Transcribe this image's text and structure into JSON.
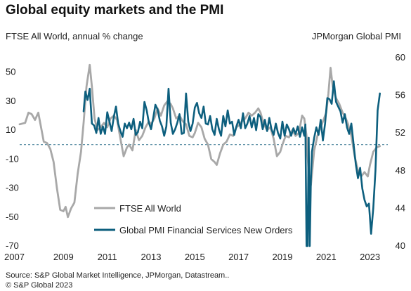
{
  "title": "Global equity markets and the PMI",
  "footer": {
    "source": "Source: S&P Global Market Intelligence, JPMorgan, Datastream..",
    "copyright": "© S&P Global 2023"
  },
  "colors": {
    "ftse": "#a8a8a8",
    "pmi": "#0d5f7e",
    "reference": "#2c6f8a",
    "text": "#222222"
  },
  "chart_data": {
    "type": "line",
    "ylabel": "FTSE All World, annual % change",
    "y2label": "JPMorgan Global PMI",
    "xlim": [
      2007,
      2023.75
    ],
    "ylim": [
      -70,
      60
    ],
    "y2lim": [
      40,
      60
    ],
    "x_ticks": [
      "2007",
      "2009",
      "2011",
      "2013",
      "2015",
      "2017",
      "2019",
      "2021",
      "2023"
    ],
    "y_ticks": [
      "50",
      "30",
      "10",
      "-10",
      "-30",
      "-50",
      "-70"
    ],
    "y2_ticks": [
      "60",
      "56",
      "52",
      "48",
      "44",
      "40"
    ],
    "reference_line": {
      "y": 0,
      "style": "dashed"
    },
    "grid": false,
    "legend": {
      "position": "bottom-center"
    },
    "series": [
      {
        "name": "FTSE All World",
        "axis": "left",
        "x": [
          2007.0,
          2007.25,
          2007.4,
          2007.55,
          2007.7,
          2007.85,
          2008.0,
          2008.1,
          2008.25,
          2008.4,
          2008.55,
          2008.7,
          2008.85,
          2009.0,
          2009.1,
          2009.2,
          2009.35,
          2009.5,
          2009.65,
          2009.8,
          2009.92,
          2010.05,
          2010.2,
          2010.3,
          2010.42,
          2010.55,
          2010.7,
          2010.85,
          2011.0,
          2011.15,
          2011.3,
          2011.45,
          2011.6,
          2011.75,
          2011.9,
          2012.0,
          2012.15,
          2012.3,
          2012.45,
          2012.6,
          2012.75,
          2012.9,
          2013.0,
          2013.15,
          2013.3,
          2013.45,
          2013.6,
          2013.75,
          2013.9,
          2014.0,
          2014.15,
          2014.3,
          2014.45,
          2014.6,
          2014.75,
          2014.9,
          2015.0,
          2015.15,
          2015.3,
          2015.45,
          2015.6,
          2015.75,
          2015.9,
          2016.0,
          2016.15,
          2016.3,
          2016.45,
          2016.6,
          2016.75,
          2016.9,
          2017.0,
          2017.15,
          2017.3,
          2017.45,
          2017.6,
          2017.75,
          2017.9,
          2018.0,
          2018.15,
          2018.3,
          2018.45,
          2018.6,
          2018.75,
          2018.9,
          2019.0,
          2019.15,
          2019.3,
          2019.45,
          2019.6,
          2019.75,
          2019.9,
          2020.0,
          2020.1,
          2020.2,
          2020.3,
          2020.45,
          2020.6,
          2020.75,
          2020.9,
          2021.0,
          2021.1,
          2021.2,
          2021.3,
          2021.45,
          2021.6,
          2021.75,
          2021.9,
          2022.0,
          2022.15,
          2022.3,
          2022.45,
          2022.6,
          2022.75,
          2022.9,
          2023.0,
          2023.15,
          2023.3,
          2023.45
        ],
        "values": [
          14,
          15,
          22,
          21,
          17,
          22,
          10,
          2,
          1,
          -3,
          -12,
          -30,
          -45,
          -46,
          -43,
          -50,
          -44,
          -40,
          -20,
          -5,
          15,
          40,
          55,
          40,
          18,
          10,
          12,
          15,
          12,
          18,
          20,
          17,
          4,
          -8,
          -2,
          0,
          -4,
          10,
          3,
          6,
          12,
          16,
          14,
          18,
          25,
          20,
          27,
          30,
          28,
          25,
          18,
          20,
          16,
          14,
          6,
          5,
          8,
          15,
          12,
          4,
          0,
          -10,
          -12,
          -14,
          -6,
          0,
          2,
          7,
          6,
          12,
          13,
          16,
          18,
          22,
          20,
          22,
          25,
          22,
          14,
          10,
          12,
          4,
          -8,
          -5,
          0,
          6,
          5,
          10,
          6,
          8,
          20,
          18,
          6,
          -20,
          -28,
          -4,
          6,
          12,
          18,
          22,
          35,
          53,
          40,
          32,
          28,
          22,
          18,
          14,
          6,
          -8,
          -18,
          -22,
          -19,
          -22,
          -14,
          -5,
          -2,
          -1
        ]
      },
      {
        "name": "Global PMI Financial Services New Orders",
        "axis": "right",
        "x": [
          2009.92,
          2010.0,
          2010.1,
          2010.2,
          2010.3,
          2010.4,
          2010.5,
          2010.6,
          2010.7,
          2010.8,
          2010.9,
          2011.0,
          2011.1,
          2011.2,
          2011.3,
          2011.4,
          2011.5,
          2011.6,
          2011.7,
          2011.8,
          2011.9,
          2012.0,
          2012.1,
          2012.2,
          2012.3,
          2012.4,
          2012.5,
          2012.6,
          2012.7,
          2012.8,
          2012.9,
          2013.0,
          2013.1,
          2013.2,
          2013.3,
          2013.4,
          2013.5,
          2013.6,
          2013.7,
          2013.8,
          2013.9,
          2014.0,
          2014.1,
          2014.2,
          2014.3,
          2014.4,
          2014.5,
          2014.6,
          2014.7,
          2014.8,
          2014.9,
          2015.0,
          2015.1,
          2015.2,
          2015.3,
          2015.4,
          2015.5,
          2015.6,
          2015.7,
          2015.8,
          2015.9,
          2016.0,
          2016.1,
          2016.2,
          2016.3,
          2016.4,
          2016.5,
          2016.6,
          2016.7,
          2016.8,
          2016.9,
          2017.0,
          2017.1,
          2017.2,
          2017.3,
          2017.4,
          2017.5,
          2017.6,
          2017.7,
          2017.8,
          2017.9,
          2018.0,
          2018.1,
          2018.2,
          2018.3,
          2018.4,
          2018.5,
          2018.6,
          2018.7,
          2018.8,
          2018.9,
          2019.0,
          2019.1,
          2019.2,
          2019.3,
          2019.4,
          2019.5,
          2019.6,
          2019.7,
          2019.8,
          2019.9,
          2020.0,
          2020.05,
          2020.1,
          2020.15,
          2020.2,
          2020.25,
          2020.3,
          2020.35,
          2020.45,
          2020.55,
          2020.65,
          2020.75,
          2020.85,
          2020.95,
          2021.05,
          2021.15,
          2021.25,
          2021.35,
          2021.45,
          2021.55,
          2021.65,
          2021.75,
          2021.85,
          2021.95,
          2022.05,
          2022.15,
          2022.25,
          2022.35,
          2022.45,
          2022.55,
          2022.65,
          2022.75,
          2022.85,
          2022.95,
          2023.05,
          2023.15,
          2023.25,
          2023.35,
          2023.45
        ],
        "values": [
          54.3,
          56.4,
          55.5,
          56.7,
          53.0,
          52.8,
          52.0,
          53.6,
          51.9,
          52.7,
          51.9,
          54.2,
          53.2,
          52.2,
          53.7,
          54.8,
          53.0,
          52.2,
          51.6,
          53.0,
          52.5,
          53.1,
          52.4,
          53.5,
          51.8,
          52.1,
          53.2,
          52.5,
          55.3,
          54.4,
          53.1,
          52.4,
          53.6,
          55.0,
          54.5,
          53.3,
          52.7,
          51.7,
          52.7,
          56.7,
          53.1,
          51.9,
          52.4,
          53.1,
          54.0,
          51.9,
          52.0,
          56.2,
          53.2,
          52.2,
          53.0,
          54.7,
          55.2,
          54.1,
          53.6,
          54.8,
          53.0,
          52.9,
          53.8,
          52.4,
          51.8,
          53.5,
          52.4,
          51.7,
          53.8,
          52.7,
          54.4,
          53.0,
          53.2,
          51.8,
          52.7,
          53.4,
          52.5,
          54.1,
          52.5,
          53.0,
          53.8,
          52.6,
          53.6,
          52.3,
          54.0,
          53.7,
          52.4,
          53.4,
          52.2,
          53.6,
          52.4,
          51.8,
          53.0,
          52.0,
          51.4,
          53.2,
          51.7,
          52.9,
          52.4,
          51.7,
          52.5,
          51.9,
          52.7,
          51.6,
          52.6,
          51.7,
          52.9,
          40.0,
          35.0,
          51.5,
          35.0,
          47.0,
          50.0,
          51.5,
          52.6,
          51.8,
          53.4,
          51.2,
          53.0,
          55.7,
          55.6,
          55.1,
          57.5,
          55.3,
          54.8,
          54.3,
          53.1,
          54.0,
          52.6,
          51.9,
          53.0,
          50.8,
          48.7,
          47.2,
          48.3,
          46.1,
          44.9,
          44.2,
          44.5,
          41.3,
          44.0,
          48.0,
          54.4,
          56.2
        ]
      }
    ]
  }
}
